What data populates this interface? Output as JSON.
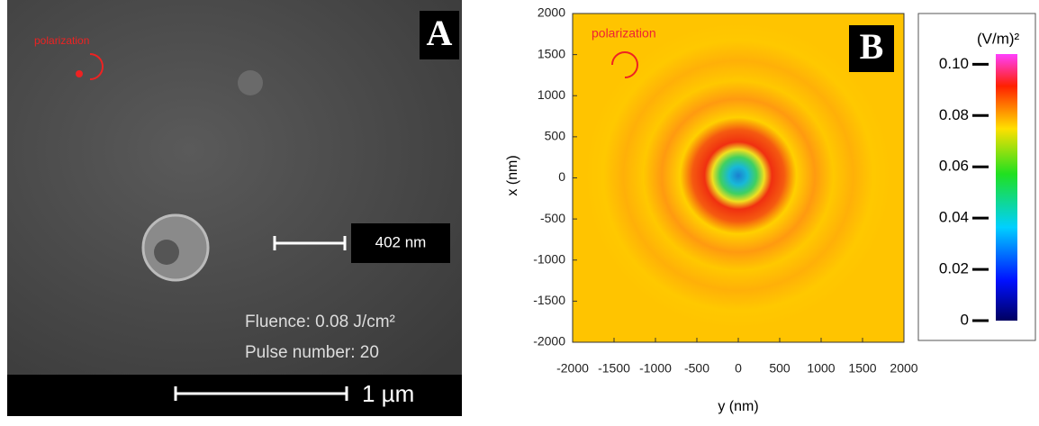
{
  "panel_a": {
    "label": "A",
    "polarization": "polarization",
    "scale_bar_small": "402 nm",
    "fluence": "Fluence: 0.08 J/cm²",
    "pulses": "Pulse number: 20",
    "scale_bar": "1 µm"
  },
  "chart_data": {
    "type": "heatmap",
    "label": "B",
    "annotation": "polarization",
    "x_label": "y (nm)",
    "y_label": "x (nm)",
    "xlim": [
      -2000,
      2000
    ],
    "xticks": [
      -2000,
      -1500,
      -1000,
      -500,
      0,
      500,
      1000,
      1500,
      2000
    ],
    "ylim": [
      -2000,
      2000
    ],
    "yticks": [
      -2000,
      -1500,
      -1000,
      -500,
      0,
      500,
      1000,
      1500,
      2000
    ],
    "colorbar": {
      "title": "(V/m)²",
      "lim": [
        0,
        0.104
      ],
      "ticks": [
        0,
        0.02,
        0.04,
        0.06,
        0.08,
        {
          "value": 0.1,
          "label": "0.10"
        }
      ]
    }
  }
}
